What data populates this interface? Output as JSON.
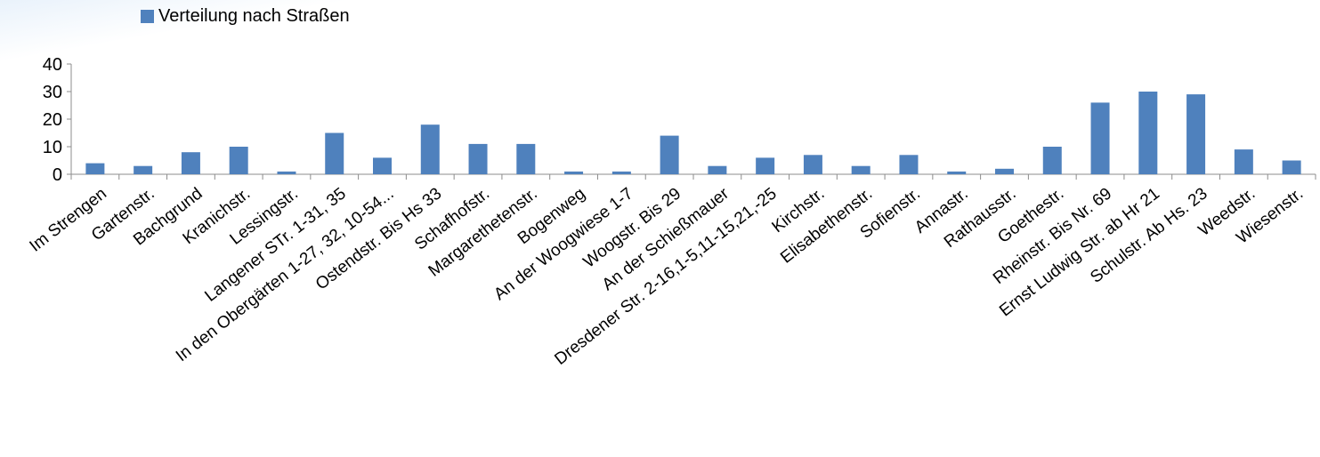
{
  "chart_data": {
    "type": "bar",
    "legend": "Verteilung nach Straßen",
    "legend_position": "top",
    "bar_color": "#4f81bd",
    "ylim": [
      0,
      40
    ],
    "yticks": [
      0,
      10,
      20,
      30,
      40
    ],
    "grid": false,
    "categories": [
      "Im Strengen",
      "Gartenstr.",
      "Bachgrund",
      "Kranichstr.",
      "Lessingstr.",
      "Langener STr. 1-31, 35",
      "In den Obergärten 1-27, 32, 10-54...",
      "Ostendstr. Bis Hs 33",
      "Schafhofstr.",
      "Margarethetenstr.",
      "Bogenweg",
      "An der Woogwiese 1-7",
      "Woogstr. Bis 29",
      "An der Schießmauer",
      "Dresdener Str. 2-16,1-5,11-15,21,-25",
      "Kirchstr.",
      "Elisabethenstr.",
      "Sofienstr.",
      "Annastr.",
      "Rathausstr.",
      "Goethestr.",
      "Rheinstr. Bis Nr. 69",
      "Ernst Ludwig Str. ab Hr 21",
      "Schulstr. Ab Hs. 23",
      "Weedstr.",
      "Wiesenstr."
    ],
    "series": [
      {
        "name": "Verteilung nach Straßen",
        "values": [
          4,
          3,
          8,
          10,
          1,
          15,
          6,
          18,
          11,
          11,
          1,
          1,
          14,
          3,
          6,
          7,
          3,
          7,
          1,
          2,
          10,
          26,
          30,
          29,
          9,
          5
        ]
      }
    ]
  }
}
